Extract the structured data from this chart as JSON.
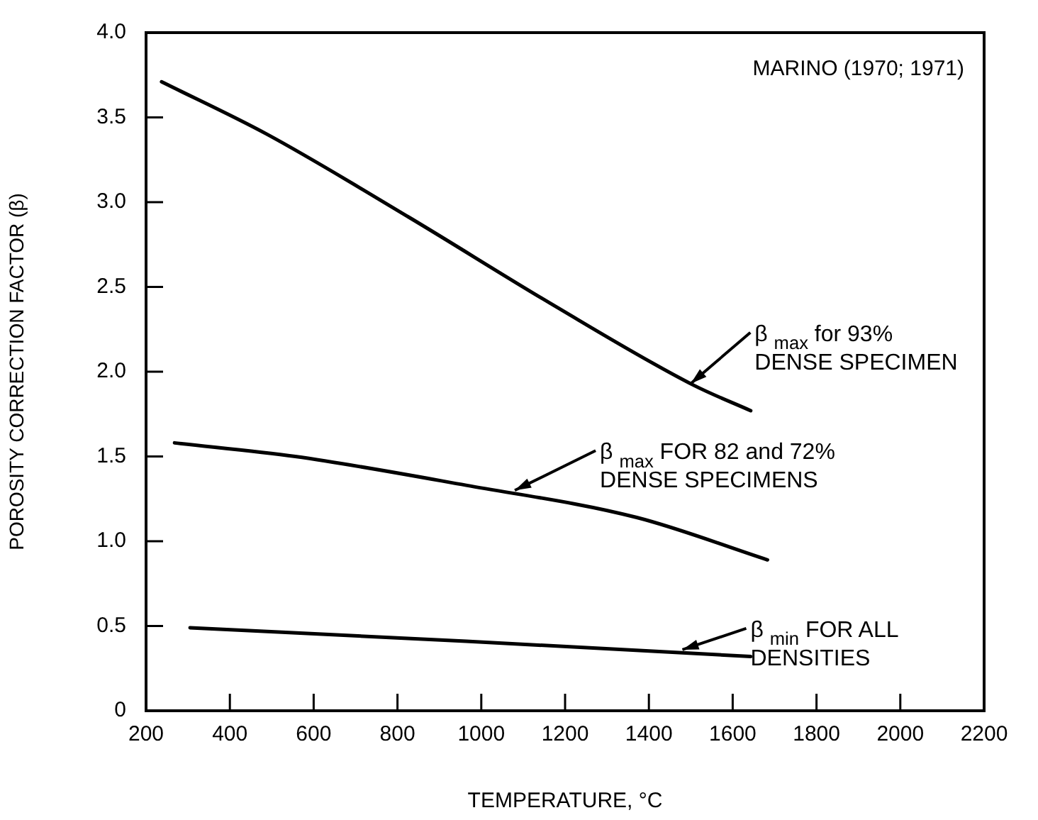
{
  "chart_data": {
    "type": "line",
    "xlabel": "TEMPERATURE, °C",
    "ylabel": "POROSITY CORRECTION FACTOR (β)",
    "xlim": [
      200,
      2200
    ],
    "xticks": [
      200,
      400,
      600,
      800,
      1000,
      1200,
      1400,
      1600,
      1800,
      2000,
      2200
    ],
    "ylim": [
      0,
      4
    ],
    "yticks": [
      0,
      0.5,
      {
        "value": 1,
        "label": "1.0"
      },
      1.5,
      {
        "value": 2,
        "label": "2.0"
      },
      2.5,
      {
        "value": 3,
        "label": "3.0"
      },
      3.5,
      {
        "value": 4,
        "label": "4.0"
      }
    ],
    "grid": false,
    "legend": false,
    "marker": "none",
    "line_style": "solid",
    "series": [
      {
        "color": "#000000",
        "x": [
          237,
          489,
          828,
          1167,
          1507,
          1643
        ],
        "values": [
          3.71,
          3.4,
          2.91,
          2.4,
          1.92,
          1.77
        ]
      },
      {
        "color": "#000000",
        "x": [
          268,
          556,
          964,
          1371,
          1683
        ],
        "values": [
          1.58,
          1.5,
          1.33,
          1.14,
          0.89
        ]
      },
      {
        "color": "#000000",
        "x": [
          305,
          964,
          1643
        ],
        "values": [
          0.49,
          0.41,
          0.32
        ]
      }
    ],
    "annotations": [
      "MARINO (1970; 1971)",
      {
        "text": "β $_{max}$ for 93%\nDENSE SPECIMEN",
        "x": 1500,
        "y": 1.93
      },
      {
        "text": "β $_{max}$ FOR 82 and 72%\nDENSE SPECIMENS",
        "x": 1080,
        "y": 1.3
      },
      {
        "text": "β $_{min}$ FOR ALL\nDENSITIES",
        "x": 1480,
        "y": 0.36
      }
    ]
  }
}
